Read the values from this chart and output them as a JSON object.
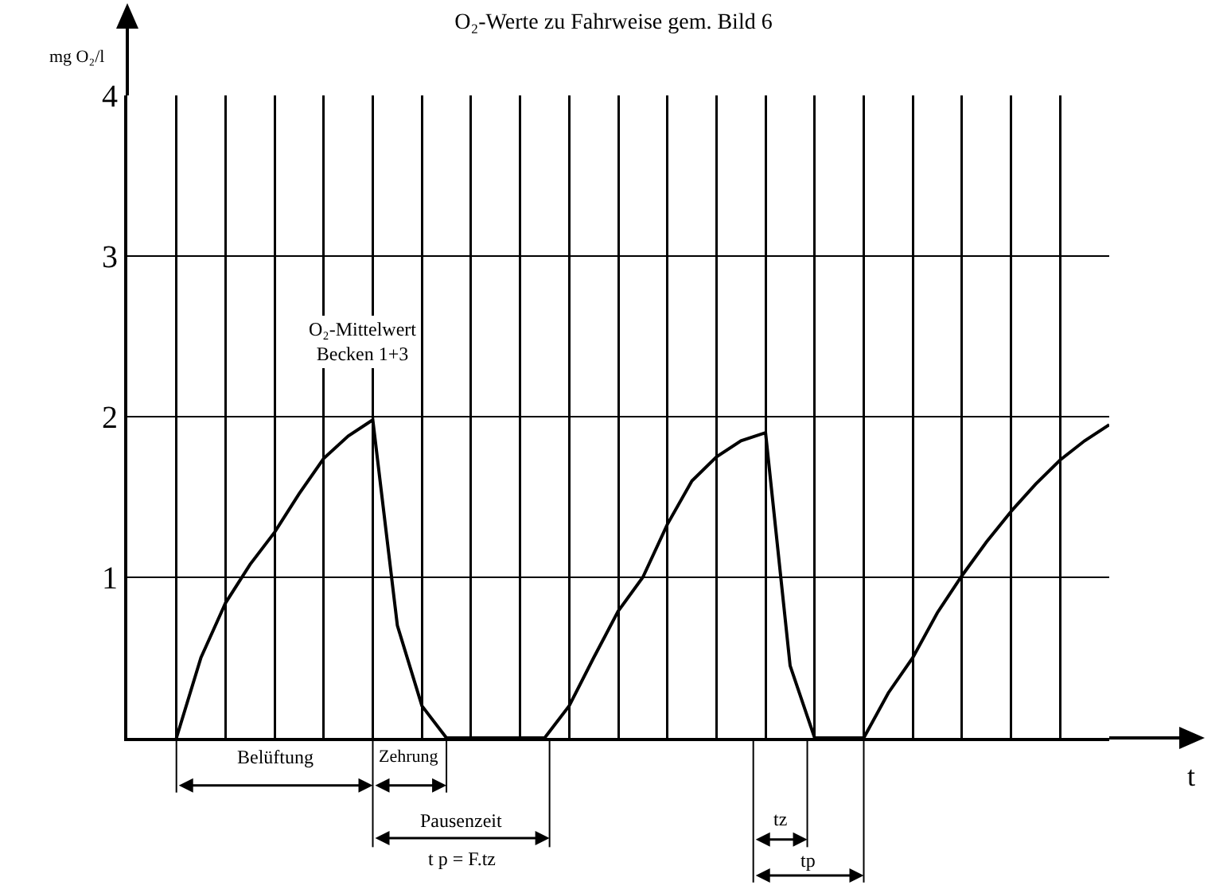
{
  "chart_data": {
    "type": "line",
    "title": "O₂-Werte zu Fahrweise gem. Bild 6",
    "ylabel": "mg O₂/l",
    "xlabel": "t",
    "categories": [
      null,
      null,
      null,
      null,
      null,
      null,
      null,
      null,
      null,
      null,
      null,
      null,
      null,
      null,
      null,
      null,
      null,
      null,
      null,
      null,
      null,
      null,
      null,
      null,
      null,
      null,
      null,
      null,
      null,
      null,
      null,
      null,
      null,
      null,
      null,
      null,
      null,
      null,
      null,
      null,
      null
    ],
    "series": [
      {
        "color": "#000000",
        "values": [
          null,
          null,
          0,
          0.5,
          0.84,
          1.08,
          1.28,
          1.52,
          1.74,
          1.88,
          1.98,
          0.7,
          0.2,
          0,
          0,
          0,
          0,
          0,
          0.2,
          0.5,
          0.79,
          1.0,
          1.33,
          1.6,
          1.75,
          1.85,
          1.9,
          0.45,
          0,
          0,
          0,
          0.28,
          0.5,
          0.78,
          1.01,
          1.22,
          1.41,
          1.58,
          1.73,
          1.85,
          1.95
        ]
      }
    ],
    "ylim": [
      0,
      4
    ],
    "yticks": [
      1,
      2,
      3,
      4
    ],
    "grid": true,
    "marker": "none",
    "line_style": "solid",
    "annotations": [
      "O₂-Mittelwert\nBecken 1+3",
      "Belüftung",
      "Zehrung",
      "Pausenzeit",
      "t p = F.tz",
      "tz",
      "tp"
    ]
  }
}
